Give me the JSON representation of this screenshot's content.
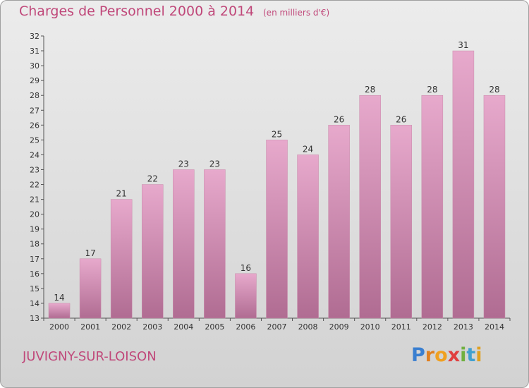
{
  "header": {
    "title": "Charges de Personnel 2000 à 2014",
    "units": "(en milliers d'€)"
  },
  "footer": {
    "town": "JUVIGNY-SUR-LOISON",
    "brand": [
      "P",
      "r",
      "o",
      "x",
      "i",
      "t",
      "i"
    ]
  },
  "colors": {
    "bar_top": "#e7a9cc",
    "bar_bottom": "#b06c92",
    "text_accent": "#c0487a"
  },
  "chart_data": {
    "type": "bar",
    "title": "Charges de Personnel 2000 à 2014",
    "subtitle": "(en milliers d'€)",
    "categories": [
      "2000",
      "2001",
      "2002",
      "2003",
      "2004",
      "2005",
      "2006",
      "2007",
      "2008",
      "2009",
      "2010",
      "2011",
      "2012",
      "2013",
      "2014"
    ],
    "values": [
      14,
      17,
      21,
      22,
      23,
      23,
      16,
      25,
      24,
      26,
      28,
      26,
      28,
      31,
      28
    ],
    "ylim": [
      13,
      32
    ],
    "yticks": [
      13,
      14,
      15,
      16,
      17,
      18,
      19,
      20,
      21,
      22,
      23,
      24,
      25,
      26,
      27,
      28,
      29,
      30,
      31,
      32
    ],
    "grid": false,
    "xlabel": "",
    "ylabel": ""
  }
}
